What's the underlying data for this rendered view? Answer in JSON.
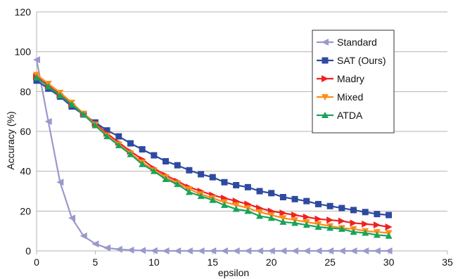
{
  "chart_data": {
    "type": "line",
    "title": "",
    "xlabel": "epsilon",
    "ylabel": "Accuracy (%)",
    "xlim": [
      0,
      35
    ],
    "ylim": [
      0,
      120
    ],
    "xticks": [
      0,
      5,
      10,
      15,
      20,
      25,
      30,
      35
    ],
    "yticks": [
      0,
      20,
      40,
      60,
      80,
      100,
      120
    ],
    "grid": "horizontal",
    "legend_position": "right",
    "x": [
      0,
      1,
      2,
      3,
      4,
      5,
      6,
      7,
      8,
      9,
      10,
      11,
      12,
      13,
      14,
      15,
      16,
      17,
      18,
      19,
      20,
      21,
      22,
      23,
      24,
      25,
      26,
      27,
      28,
      29,
      30
    ],
    "series": [
      {
        "name": "Standard",
        "color": "#9999cc",
        "marker": "triangle-left",
        "values": [
          96,
          65,
          34.5,
          16.5,
          7.5,
          3.5,
          1.5,
          0.8,
          0.4,
          0.2,
          0.1,
          0,
          0,
          0,
          0,
          0,
          0,
          0,
          0,
          0,
          0,
          0,
          0,
          0,
          0,
          0,
          0,
          0,
          0,
          0,
          0
        ]
      },
      {
        "name": "SAT (Ours)",
        "color": "#2e4aa0",
        "marker": "square",
        "values": [
          85.5,
          81.5,
          77.5,
          72.5,
          68.5,
          64.5,
          60.5,
          57.5,
          54,
          51,
          48,
          45,
          43,
          40.5,
          38.5,
          37,
          34.5,
          33,
          32,
          30,
          29,
          27,
          26,
          25,
          23.5,
          22.5,
          21.5,
          20.5,
          19.5,
          18.5,
          18
        ]
      },
      {
        "name": "Madry",
        "color": "#ee2222",
        "marker": "triangle-right",
        "values": [
          87.5,
          83,
          78.5,
          73.5,
          69,
          64,
          59,
          54.5,
          50,
          46,
          41.5,
          38,
          35,
          32,
          30,
          28,
          26.5,
          25,
          23.5,
          21.5,
          20,
          19,
          18,
          17,
          16,
          15.5,
          15,
          14,
          13.5,
          13,
          12
        ]
      },
      {
        "name": "Mixed",
        "color": "#ff8c1a",
        "marker": "triangle-down",
        "values": [
          88.5,
          84,
          79.5,
          74.5,
          69,
          63.5,
          58,
          53.5,
          49,
          44.5,
          40.5,
          37,
          34,
          31,
          28.5,
          26.5,
          24.5,
          23,
          21.5,
          19.5,
          18,
          16.5,
          15.5,
          14.5,
          13.5,
          12.5,
          11.5,
          11,
          10,
          9.5,
          9
        ]
      },
      {
        "name": "ATDA",
        "color": "#1aa35a",
        "marker": "triangle-up",
        "values": [
          87,
          82.5,
          78,
          73.5,
          68.5,
          63,
          57.5,
          53,
          48.5,
          43.5,
          40,
          36,
          33.5,
          29.5,
          27.5,
          25.5,
          23,
          21,
          20,
          17.5,
          16.5,
          14.5,
          14,
          13,
          12,
          11.5,
          11,
          9.5,
          9,
          8,
          7.5
        ]
      }
    ]
  }
}
